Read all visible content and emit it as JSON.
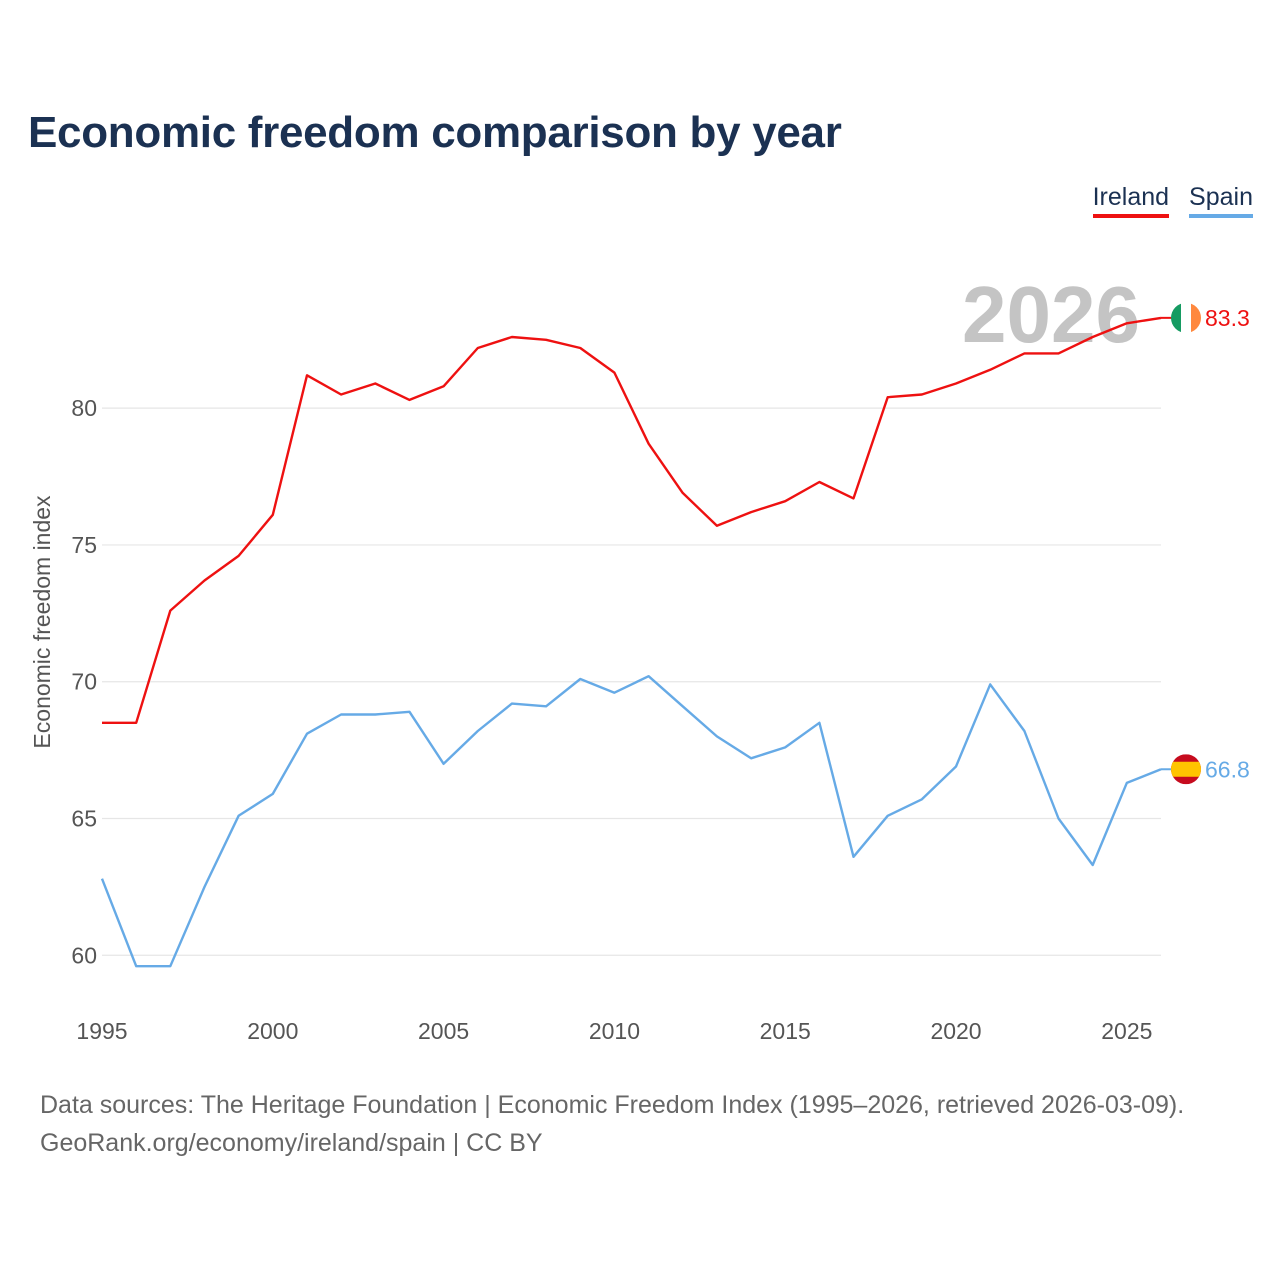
{
  "header": {
    "title": "Economic freedom comparison by year"
  },
  "legend": {
    "items": [
      {
        "label": "Ireland",
        "color": "#ee1111"
      },
      {
        "label": "Spain",
        "color": "#66aae6"
      }
    ]
  },
  "watermark": {
    "year": "2026"
  },
  "footer": {
    "line1": "Data sources: The Heritage Foundation | Economic Freedom Index (1995–2026, retrieved 2026-03-09).",
    "line2": "GeoRank.org/economy/ireland/spain | CC BY"
  },
  "chart_data": {
    "type": "line",
    "title": "Economic freedom comparison by year",
    "xlabel": "",
    "ylabel": "Economic freedom index",
    "xlim": [
      1995,
      2026
    ],
    "ylim": [
      58,
      86
    ],
    "x_ticks": [
      1995,
      2000,
      2005,
      2010,
      2015,
      2020,
      2025
    ],
    "y_ticks": [
      60,
      65,
      70,
      75,
      80
    ],
    "grid": true,
    "legend_position": "top-right",
    "x": [
      1995,
      1996,
      1997,
      1998,
      1999,
      2000,
      2001,
      2002,
      2003,
      2004,
      2005,
      2006,
      2007,
      2008,
      2009,
      2010,
      2011,
      2012,
      2013,
      2014,
      2015,
      2016,
      2017,
      2018,
      2019,
      2020,
      2021,
      2022,
      2023,
      2024,
      2025,
      2026
    ],
    "series": [
      {
        "name": "Ireland",
        "color": "#ee1111",
        "flag": "ireland-flag",
        "end_label": "83.3",
        "values": [
          68.5,
          68.5,
          72.6,
          73.7,
          74.6,
          76.1,
          81.2,
          80.5,
          80.9,
          80.3,
          80.8,
          82.2,
          82.6,
          82.5,
          82.2,
          81.3,
          78.7,
          76.9,
          75.7,
          76.2,
          76.6,
          77.3,
          76.7,
          80.4,
          80.5,
          80.9,
          81.4,
          82.0,
          82.0,
          82.6,
          83.1,
          83.3
        ]
      },
      {
        "name": "Spain",
        "color": "#66aae6",
        "flag": "spain-flag",
        "end_label": "66.8",
        "values": [
          62.8,
          59.6,
          59.6,
          62.5,
          65.1,
          65.9,
          68.1,
          68.8,
          68.8,
          68.9,
          67.0,
          68.2,
          69.2,
          69.1,
          70.1,
          69.6,
          70.2,
          69.1,
          68.0,
          67.2,
          67.6,
          68.5,
          63.6,
          65.1,
          65.7,
          66.9,
          69.9,
          68.2,
          65.0,
          63.3,
          66.3,
          66.8
        ]
      }
    ]
  }
}
